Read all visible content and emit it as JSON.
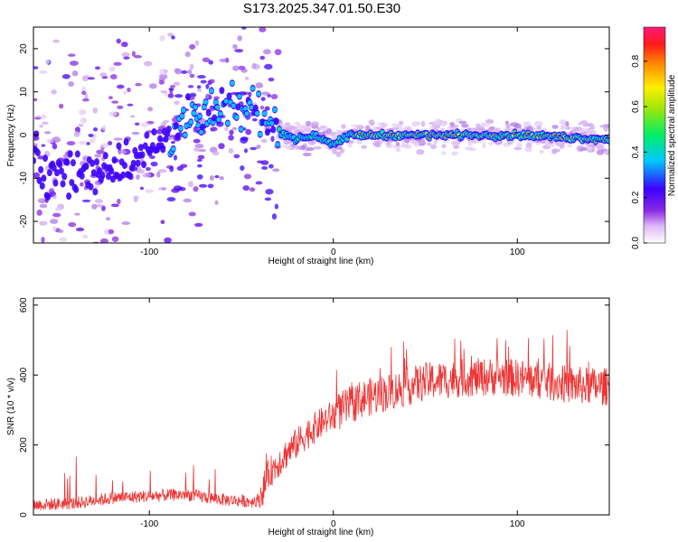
{
  "title": "S173.2025.347.01.50.E30",
  "chart_data": [
    {
      "type": "heatmap",
      "name": "spectrogram",
      "xlabel": "Height of straight line (km)",
      "ylabel": "Frequency (Hz)",
      "xlim": [
        -163,
        150
      ],
      "ylim": [
        -25,
        25
      ],
      "xticks": [
        -100,
        0,
        100
      ],
      "yticks": [
        -20,
        -10,
        0,
        10,
        20
      ],
      "colorbar": {
        "label": "Normalized spectral amplitude",
        "range": [
          0,
          0.95
        ],
        "ticks": [
          0.0,
          0.2,
          0.4,
          0.6,
          0.8
        ]
      },
      "ridge": [
        {
          "x": -160,
          "y": -10
        },
        {
          "x": -140,
          "y": -9
        },
        {
          "x": -120,
          "y": -7
        },
        {
          "x": -100,
          "y": -4
        },
        {
          "x": -85,
          "y": 2
        },
        {
          "x": -70,
          "y": 4
        },
        {
          "x": -55,
          "y": 6
        },
        {
          "x": -40,
          "y": 6
        },
        {
          "x": -30,
          "y": 1
        },
        {
          "x": -20,
          "y": -1
        },
        {
          "x": -10,
          "y": 0
        },
        {
          "x": 0,
          "y": -2
        },
        {
          "x": 10,
          "y": 0
        },
        {
          "x": 50,
          "y": 0
        },
        {
          "x": 100,
          "y": 0
        },
        {
          "x": 150,
          "y": -1
        }
      ]
    },
    {
      "type": "line",
      "name": "snr",
      "xlabel": "Height of straight line (km)",
      "ylabel": "SNR (10 * v/v)",
      "xlim": [
        -163,
        150
      ],
      "ylim": [
        0,
        620
      ],
      "xticks": [
        -100,
        0,
        100
      ],
      "yticks": [
        0,
        200,
        400,
        600
      ],
      "color": "#ee3333",
      "trend": {
        "x": [
          -163,
          -140,
          -120,
          -100,
          -80,
          -60,
          -45,
          -40,
          -35,
          -25,
          -15,
          -5,
          5,
          15,
          30,
          50,
          70,
          90,
          110,
          130,
          150
        ],
        "y": [
          25,
          30,
          45,
          50,
          55,
          40,
          35,
          40,
          110,
          170,
          220,
          260,
          290,
          320,
          340,
          370,
          380,
          385,
          375,
          360,
          355
        ]
      }
    }
  ]
}
